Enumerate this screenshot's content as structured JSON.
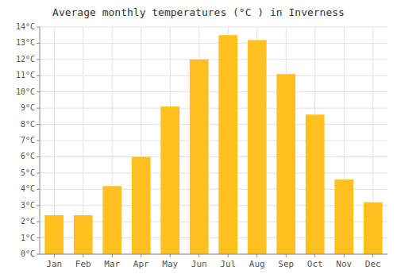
{
  "chart_data": {
    "type": "bar",
    "title": "Average monthly temperatures (°C ) in Inverness",
    "categories": [
      "Jan",
      "Feb",
      "Mar",
      "Apr",
      "May",
      "Jun",
      "Jul",
      "Aug",
      "Sep",
      "Oct",
      "Nov",
      "Dec"
    ],
    "values": [
      2.4,
      2.4,
      4.2,
      6.0,
      9.1,
      12.0,
      13.5,
      13.2,
      11.1,
      8.6,
      4.6,
      3.2
    ],
    "color": "#FFC020",
    "ylim": [
      0,
      14
    ],
    "yticks": [
      {
        "value": 0,
        "label": "0°C"
      },
      {
        "value": 1,
        "label": "1°C"
      },
      {
        "value": 2,
        "label": "2°C"
      },
      {
        "value": 3,
        "label": "3°C"
      },
      {
        "value": 4,
        "label": "4°C"
      },
      {
        "value": 5,
        "label": "5°C"
      },
      {
        "value": 6,
        "label": "6°C"
      },
      {
        "value": 7,
        "label": "7°C"
      },
      {
        "value": 8,
        "label": "8°C"
      },
      {
        "value": 9,
        "label": "9°C"
      },
      {
        "value": 10,
        "label": "10°C"
      },
      {
        "value": 11,
        "label": "11°C"
      },
      {
        "value": 12,
        "label": "12°C"
      },
      {
        "value": 13,
        "label": "13°C"
      },
      {
        "value": 14,
        "label": "14°C"
      }
    ],
    "grid": true
  }
}
